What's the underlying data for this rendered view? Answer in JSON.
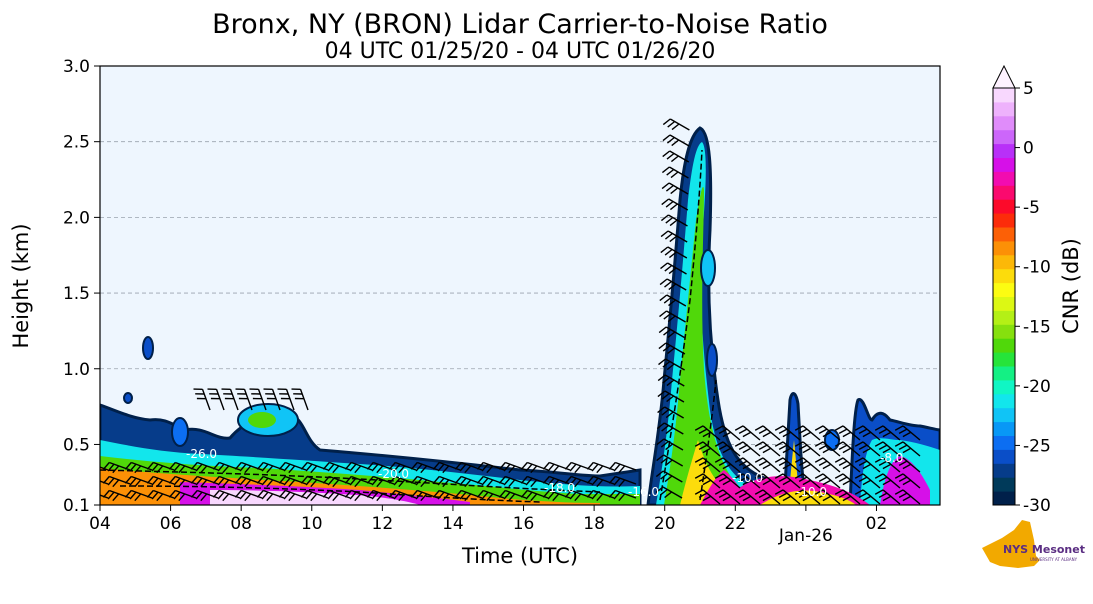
{
  "chart_data": {
    "type": "heatmap",
    "title": "Bronx, NY (BRON) Lidar Carrier-to-Noise Ratio",
    "subtitle": "04 UTC 01/25/20 - 04 UTC 01/26/20",
    "xlabel": "Time (UTC)",
    "ylabel": "Height (km)",
    "x_tick_labels": [
      "04",
      "06",
      "08",
      "10",
      "12",
      "14",
      "16",
      "18",
      "20",
      "22",
      "Jan-26",
      "02"
    ],
    "x_tick_hours": [
      4,
      6,
      8,
      10,
      12,
      14,
      16,
      18,
      20,
      22,
      24,
      26
    ],
    "xlim_hours": [
      4,
      27.8
    ],
    "y_ticks": [
      0.1,
      0.5,
      1.0,
      1.5,
      2.0,
      2.5,
      3.0
    ],
    "y_tick_labels": [
      "0.1",
      "0.5",
      "1.0",
      "1.5",
      "2.0",
      "2.5",
      "3.0"
    ],
    "ylim": [
      0.1,
      3.0
    ],
    "grid": "horizontal dashed",
    "colorbar": {
      "label": "CNR (dB)",
      "min": -30,
      "max": 5,
      "ticks": [
        5,
        0,
        -5,
        -10,
        -15,
        -20,
        -25,
        -30
      ],
      "tick_labels": [
        "5",
        "0",
        "-5",
        "-10",
        "-15",
        "-20",
        "-25",
        "-30"
      ],
      "colors": [
        "#00204a",
        "#003a5a",
        "#063c8a",
        "#0a4ec8",
        "#0c6ef2",
        "#0898f6",
        "#10c4f6",
        "#12e6ec",
        "#10f6c4",
        "#14f084",
        "#26e43a",
        "#50d80a",
        "#86e00e",
        "#b4f016",
        "#dcf814",
        "#fcfc12",
        "#fcdc0c",
        "#fcb808",
        "#fc9006",
        "#fc6006",
        "#fc2c0a",
        "#fc0a2a",
        "#fa0a6e",
        "#f20cb0",
        "#d610e8",
        "#b830f8",
        "#cc66fa",
        "#e08cfa",
        "#eeb2fc",
        "#f8d8fe"
      ]
    },
    "contour_labels": [
      "-26.0",
      "-20.0",
      "-18.0",
      "-16.0",
      "-10.0",
      "-10.0",
      "-8.0"
    ],
    "logo_text": "NYS Mesonet"
  }
}
